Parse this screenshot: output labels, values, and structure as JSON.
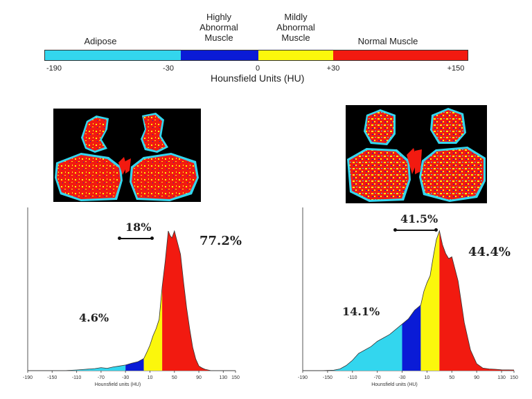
{
  "legend": {
    "segments": [
      {
        "label": "Adipose",
        "from": -190,
        "to": -30,
        "color": "#33d6ee"
      },
      {
        "label": "Highly\nAbnormal\nMuscle",
        "from": -30,
        "to": 0,
        "color": "#0a1bd6"
      },
      {
        "label": "Mildly\nAbnormal\nMuscle",
        "from": 0,
        "to": 30,
        "color": "#fbf70c"
      },
      {
        "label": "Normal Muscle",
        "from": 30,
        "to": 150,
        "color": "#f21a10"
      }
    ],
    "ticks": [
      "-190",
      "-30",
      "0",
      "+30",
      "+150"
    ],
    "axis_title": "Hounsfield Units (HU)"
  },
  "annotations": {
    "left": {
      "bracket": "18%",
      "normal": "77.2%",
      "adipose": "4.6%"
    },
    "right": {
      "bracket": "41.5%",
      "normal": "44.4%",
      "adipose": "14.1%"
    }
  },
  "chart_data": [
    {
      "type": "area",
      "xlabel": "Hounsfield units (HU)",
      "xlim": [
        -190,
        150
      ],
      "xticks": [
        "-190",
        "-150",
        "-110",
        "-70",
        "-30",
        "10",
        "50",
        "90",
        "130",
        "150"
      ],
      "grid": false,
      "colors": {
        "adipose": "#33d6ee",
        "highly_abnormal": "#0a1bd6",
        "mildly_abnormal": "#fbf70c",
        "normal": "#f21a10"
      },
      "x": [
        -190,
        -160,
        -130,
        -110,
        -95,
        -80,
        -70,
        -60,
        -50,
        -40,
        -30,
        -20,
        -10,
        0,
        5,
        10,
        15,
        20,
        25,
        30,
        35,
        40,
        43,
        46,
        50,
        55,
        60,
        65,
        70,
        75,
        80,
        85,
        90,
        95,
        100,
        105,
        110,
        150
      ],
      "y": [
        0,
        0,
        0,
        0.3,
        0.6,
        0.9,
        1.3,
        1.0,
        1.6,
        2.0,
        2.4,
        3.2,
        3.8,
        5.2,
        8,
        11,
        15,
        18,
        22,
        36,
        47,
        60,
        58,
        57,
        60,
        55,
        50,
        38,
        27,
        18,
        10,
        5,
        2,
        1.2,
        0.6,
        0.3,
        0,
        0
      ],
      "percentages": [
        {
          "label": "4.6%",
          "range": "Adipose"
        },
        {
          "label": "18%",
          "range": "-30 to +30"
        },
        {
          "label": "77.2%",
          "range": "Normal Muscle"
        }
      ]
    },
    {
      "type": "area",
      "xlabel": "Hounsfield units (HU)",
      "xlim": [
        -190,
        150
      ],
      "xticks": [
        "-190",
        "-150",
        "-110",
        "-70",
        "-30",
        "10",
        "50",
        "90",
        "130",
        "150"
      ],
      "grid": false,
      "colors": {
        "adipose": "#33d6ee",
        "highly_abnormal": "#0a1bd6",
        "mildly_abnormal": "#fbf70c",
        "normal": "#f21a10"
      },
      "x": [
        -190,
        -160,
        -140,
        -130,
        -120,
        -110,
        -100,
        -90,
        -80,
        -70,
        -60,
        -50,
        -40,
        -30,
        -20,
        -10,
        0,
        5,
        10,
        15,
        20,
        25,
        30,
        35,
        40,
        45,
        50,
        55,
        60,
        65,
        70,
        80,
        90,
        100,
        110,
        120,
        130,
        150
      ],
      "y": [
        0,
        0,
        0.3,
        1,
        3,
        6,
        10,
        12,
        14,
        17,
        19,
        21,
        24,
        27,
        30,
        35,
        38,
        46,
        51,
        55,
        66,
        76,
        81,
        73,
        68,
        65,
        66,
        59,
        52,
        40,
        28,
        12,
        4,
        1.5,
        1,
        0.8,
        0.5,
        0.4
      ],
      "percentages": [
        {
          "label": "14.1%",
          "range": "Adipose"
        },
        {
          "label": "41.5%",
          "range": "-30 to +30"
        },
        {
          "label": "44.4%",
          "range": "Normal Muscle"
        }
      ]
    }
  ]
}
